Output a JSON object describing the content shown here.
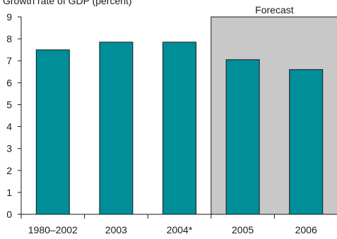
{
  "chart_data": {
    "type": "bar",
    "title": "Growth rate of GDP (percent)",
    "xlabel": "",
    "ylabel": "",
    "categories": [
      "1980–2002",
      "2003",
      "2004*",
      "2005",
      "2006"
    ],
    "values": [
      7.5,
      7.85,
      7.85,
      7.05,
      6.6
    ],
    "ylim": [
      0,
      9
    ],
    "yticks": [
      "0",
      "1",
      "2",
      "3",
      "4",
      "5",
      "6",
      "7",
      "8",
      "9"
    ],
    "forecast_label": "Forecast",
    "forecast_categories": [
      "2005",
      "2006"
    ],
    "bar_color": "#008e98",
    "bar_edge_color": "#1a1a1a",
    "forecast_shade_color": "#c8c8c9",
    "grid": false,
    "legend": "none"
  }
}
